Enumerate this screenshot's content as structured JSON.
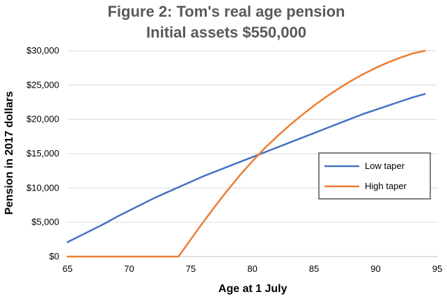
{
  "chart_data": {
    "type": "line",
    "title_lines": [
      "Figure 2: Tom's real age pension",
      "Initial assets $550,000"
    ],
    "xlabel": "Age at 1 July",
    "ylabel": "Pension in 2017 dollars",
    "xlim": [
      65,
      95
    ],
    "ylim": [
      0,
      30000
    ],
    "x_ticks": [
      65,
      70,
      75,
      80,
      85,
      90,
      95
    ],
    "y_ticks": [
      0,
      5000,
      10000,
      15000,
      20000,
      25000,
      30000
    ],
    "y_tick_labels": [
      "$0",
      "$5,000",
      "$10,000",
      "$15,000",
      "$20,000",
      "$25,000",
      "$30,000"
    ],
    "grid": "horizontal",
    "legend_position": "right",
    "series": [
      {
        "name": "Low taper",
        "color": "#4472c4",
        "x": [
          65,
          66,
          67,
          68,
          69,
          70,
          71,
          72,
          73,
          74,
          75,
          76,
          77,
          78,
          79,
          80,
          81,
          82,
          83,
          84,
          85,
          86,
          87,
          88,
          89,
          90,
          91,
          92,
          93,
          94
        ],
        "values": [
          2100,
          3000,
          3900,
          4800,
          5800,
          6700,
          7600,
          8500,
          9300,
          10100,
          10900,
          11700,
          12400,
          13100,
          13800,
          14500,
          15200,
          15900,
          16600,
          17300,
          18000,
          18700,
          19400,
          20100,
          20800,
          21400,
          22000,
          22600,
          23200,
          23700
        ]
      },
      {
        "name": "High taper",
        "color": "#ed7d31",
        "x": [
          65,
          66,
          67,
          68,
          69,
          70,
          71,
          72,
          73,
          74,
          75,
          76,
          77,
          78,
          79,
          80,
          81,
          82,
          83,
          84,
          85,
          86,
          87,
          88,
          89,
          90,
          91,
          92,
          93,
          94
        ],
        "values": [
          0,
          0,
          0,
          0,
          0,
          0,
          0,
          0,
          0,
          0,
          2500,
          5000,
          7400,
          9700,
          11900,
          13900,
          15800,
          17500,
          19100,
          20600,
          22000,
          23300,
          24500,
          25600,
          26600,
          27500,
          28300,
          29000,
          29600,
          30000
        ]
      }
    ]
  }
}
